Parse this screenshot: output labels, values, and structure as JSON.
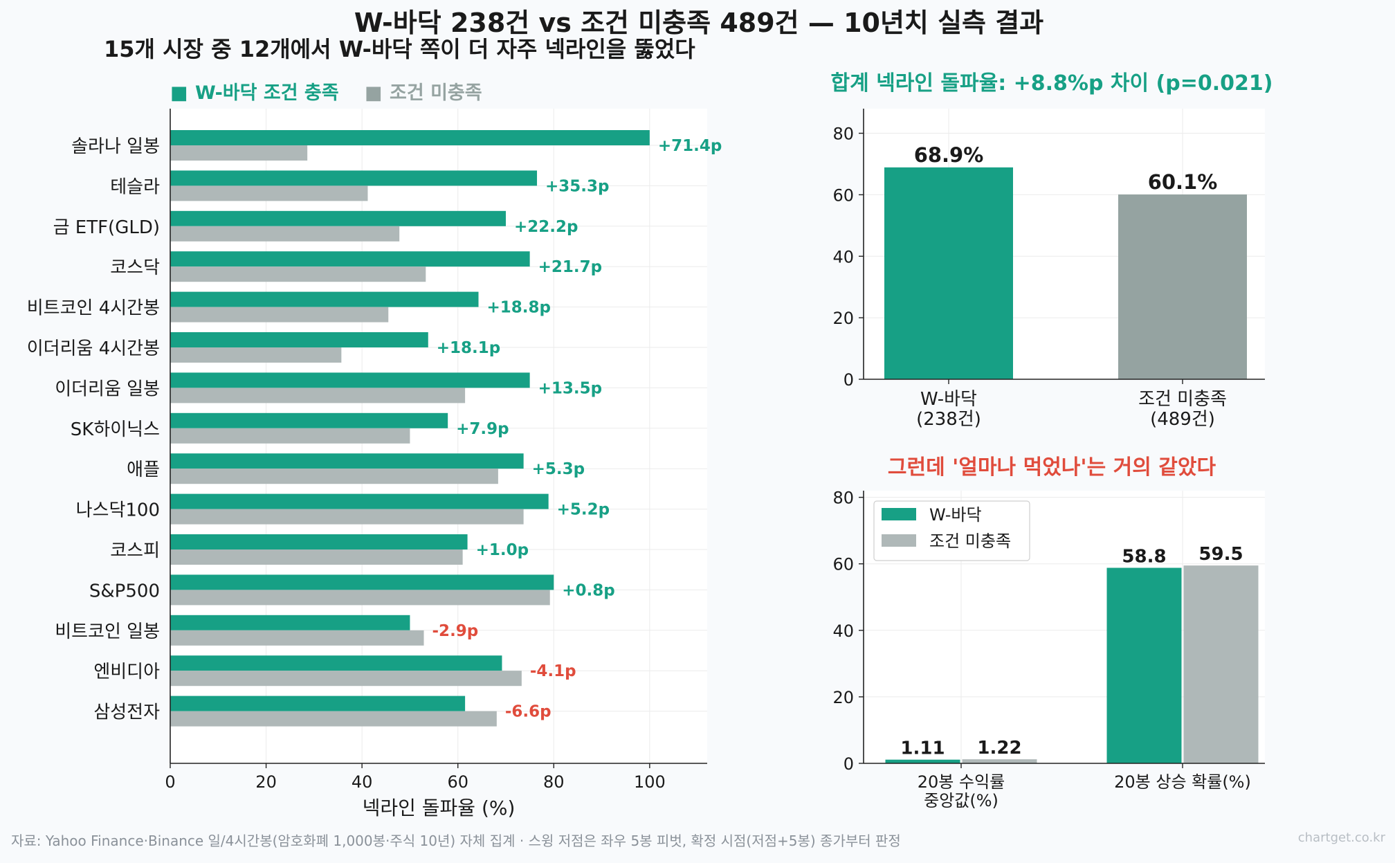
{
  "page": {
    "title": "W-바닥 238건 vs 조건 미충족 489건 — 10년치 실측 결과",
    "subtitle": "15개 시장 중 12개에서 W-바닥 쪽이 더 자주 넥라인을 뚫었다",
    "footer_source": "자료: Yahoo Finance·Binance 일/4시간봉(암호화폐 1,000봉·주식 10년) 자체 집계 · 스윙 저점은 좌우 5봉 피벗, 확정 시점(저점+5봉) 종가부터 판정",
    "watermark": "chartget.co.kr"
  },
  "colors": {
    "green": "#17a085",
    "gray": "#afb8b8",
    "gray_dark": "#95a3a1",
    "positive_label": "#17a085",
    "negative_label": "#e04c3c",
    "title_green": "#17a085",
    "title_red": "#e04c3c"
  },
  "chart_data": [
    {
      "type": "bar",
      "orientation": "horizontal",
      "legend": "top-left",
      "legend_items": [
        {
          "marker": "■",
          "label": "W-바닥 조건 충족",
          "color": "#17a085"
        },
        {
          "marker": "■",
          "label": "조건 미충족",
          "color": "#95a3a1"
        }
      ],
      "xlabel": "넥라인 돌파율 (%)",
      "xlim": [
        0,
        112
      ],
      "xticks": [
        0,
        20,
        40,
        60,
        80,
        100
      ],
      "grid": true,
      "categories": [
        "솔라나 일봉",
        "테슬라",
        "금 ETF(GLD)",
        "코스닥",
        "비트코인 4시간봉",
        "이더리움 4시간봉",
        "이더리움 일봉",
        "SK하이닉스",
        "애플",
        "나스닥100",
        "코스피",
        "S&P500",
        "비트코인 일봉",
        "엔비디아",
        "삼성전자"
      ],
      "series": [
        {
          "name": "W-바닥 조건 충족",
          "values": [
            100.0,
            76.5,
            70.0,
            75.0,
            64.3,
            53.8,
            75.0,
            57.9,
            73.7,
            78.9,
            62.0,
            80.0,
            50.0,
            69.2,
            61.5
          ]
        },
        {
          "name": "조건 미충족",
          "values": [
            28.6,
            41.2,
            47.8,
            53.3,
            45.5,
            35.7,
            61.5,
            50.0,
            68.4,
            73.7,
            61.0,
            79.2,
            52.9,
            73.3,
            68.1
          ]
        }
      ],
      "diff_labels": [
        "+71.4p",
        "+35.3p",
        "+22.2p",
        "+21.7p",
        "+18.8p",
        "+18.1p",
        "+13.5p",
        "+7.9p",
        "+5.3p",
        "+5.2p",
        "+1.0p",
        "+0.8p",
        "-2.9p",
        "-4.1p",
        "-6.6p"
      ]
    },
    {
      "type": "bar",
      "title": "합계 넥라인 돌파율: +8.8%p 차이 (p=0.021)",
      "categories": [
        [
          "W-바닥",
          "(238건)"
        ],
        [
          "조건 미충족",
          "(489건)"
        ]
      ],
      "values": [
        68.9,
        60.1
      ],
      "value_labels": [
        "68.9%",
        "60.1%"
      ],
      "ylim": [
        0,
        88
      ],
      "yticks": [
        0,
        20,
        40,
        60,
        80
      ],
      "grid": true
    },
    {
      "type": "bar",
      "title": "그런데 '얼마나 먹었나'는 거의 같았다",
      "legend": "top-left",
      "categories": [
        [
          "20봉 수익률",
          "중앙값(%)"
        ],
        [
          "20봉 상승 확률(%)"
        ]
      ],
      "series": [
        {
          "name": "W-바닥",
          "values": [
            1.11,
            58.8
          ],
          "labels": [
            "1.11",
            "58.8"
          ]
        },
        {
          "name": "조건 미충족",
          "values": [
            1.22,
            59.5
          ],
          "labels": [
            "1.22",
            "59.5"
          ]
        }
      ],
      "ylim": [
        0,
        82
      ],
      "yticks": [
        0,
        20,
        40,
        60,
        80
      ],
      "grid": true
    }
  ]
}
